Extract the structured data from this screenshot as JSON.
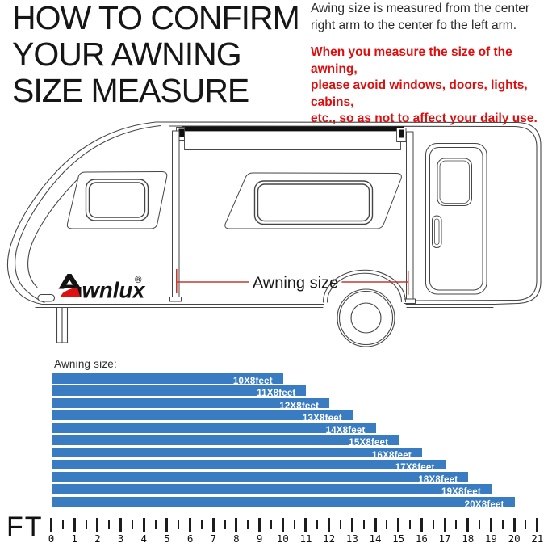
{
  "header": {
    "title_lines": [
      "HOW TO CONFIRM",
      "YOUR AWNING",
      "SIZE MEASURE"
    ],
    "note_lines": [
      "Awing size is measured from the center",
      "right arm to the center fo the left arm."
    ],
    "warning_lines": [
      "When you measure the size of the awning,",
      "please avoid windows, doors, lights, cabins,",
      "etc., so as not to affect your daily use."
    ],
    "warning_color": "#e10d0d"
  },
  "diagram": {
    "brand": "wnlux",
    "brand_mark": "®",
    "dimension_label": "Awning size",
    "dimension_line_color": "#c23b32",
    "logo_accent_color": "#dd1111"
  },
  "chart_data": {
    "type": "bar",
    "title": "Awning size:",
    "unit_label": "FT",
    "categories": [
      "10X8feet",
      "11X8feet",
      "12X8feet",
      "13X8feet",
      "14X8feet",
      "15X8feet",
      "16X8feet",
      "17X8feet",
      "18X8feet",
      "19X8feet",
      "20X8feet"
    ],
    "values": [
      10,
      11,
      12,
      13,
      14,
      15,
      16,
      17,
      18,
      19,
      20
    ],
    "bar_color": "#3a7cc1",
    "label_color": "#ffffff",
    "axis": {
      "min": 0,
      "max": 21,
      "minor_step": 0.5,
      "extra_minor_tick": 21.5
    },
    "legend": "none",
    "grid": false
  }
}
